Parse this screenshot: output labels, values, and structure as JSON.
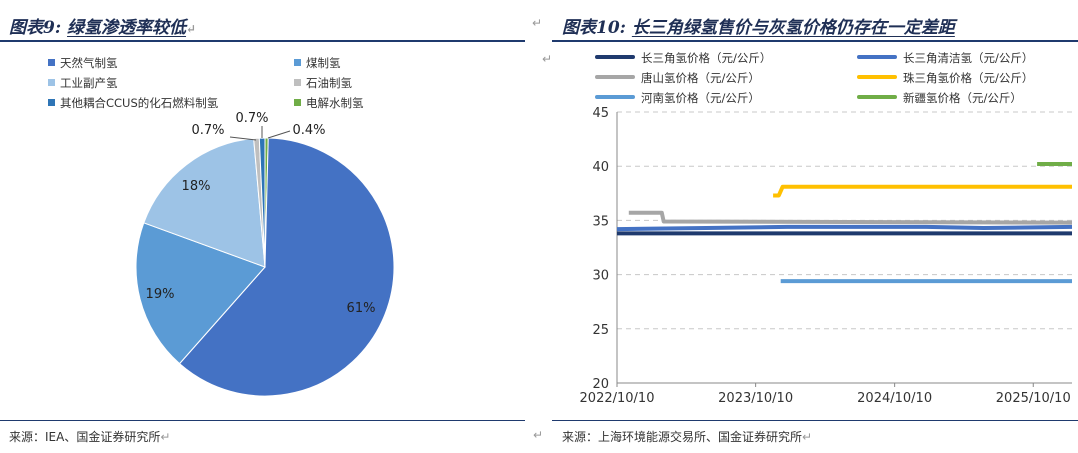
{
  "left": {
    "title_prefix": "图表9:",
    "title_main": "绿氢渗透率较低",
    "source": "来源：IEA、国金证券研究所",
    "chart_data": {
      "type": "pie",
      "title": "绿氢渗透率较低",
      "slices": [
        {
          "name": "天然气制氢",
          "value": 61,
          "label": "61%",
          "color": "#4472c4"
        },
        {
          "name": "煤制氢",
          "value": 19,
          "label": "19%",
          "color": "#5b9bd5"
        },
        {
          "name": "工业副产氢",
          "value": 18,
          "label": "18%",
          "color": "#9dc3e6"
        },
        {
          "name": "石油制氢",
          "value": 0.7,
          "label": "0.7%",
          "color": "#bfbfbf"
        },
        {
          "name": "其他耦合CCUS的化石燃料制氢",
          "value": 0.7,
          "label": "0.7%",
          "color": "#2e75b6"
        },
        {
          "name": "电解水制氢",
          "value": 0.4,
          "label": "0.4%",
          "color": "#70ad47"
        }
      ]
    }
  },
  "right": {
    "title_prefix": "图表10:",
    "title_main": "长三角绿氢售价与灰氢价格仍存在一定差距",
    "source": "来源：上海环境能源交易所、国金证券研究所",
    "chart_data": {
      "type": "line",
      "title": "长三角绿氢售价与灰氢价格仍存在一定差距",
      "ylim": [
        20,
        45
      ],
      "yticks": [
        20,
        25,
        30,
        35,
        40,
        45
      ],
      "xticks": [
        "2022/10/10",
        "2023/10/10",
        "2024/10/10",
        "2025/10/10"
      ],
      "xlim": [
        "2022/10/10",
        "2026/01/20"
      ],
      "grid": true,
      "legend": "top",
      "series": [
        {
          "name": "长三角氢价格（元/公斤）",
          "color": "#1f3a6e",
          "width": 4,
          "points": [
            [
              "2022/10/10",
              33.8
            ],
            [
              "2026/01/20",
              33.8
            ]
          ]
        },
        {
          "name": "长三角清洁氢（元/公斤）",
          "color": "#4472c4",
          "width": 4,
          "points": [
            [
              "2022/10/10",
              34.2
            ],
            [
              "2023/06/01",
              34.3
            ],
            [
              "2024/01/01",
              34.4
            ],
            [
              "2025/01/01",
              34.4
            ],
            [
              "2025/06/01",
              34.3
            ],
            [
              "2026/01/20",
              34.4
            ]
          ]
        },
        {
          "name": "唐山氢价格（元/公斤）",
          "color": "#a6a6a6",
          "width": 4,
          "points": [
            [
              "2022/11/10",
              35.7
            ],
            [
              "2023/02/05",
              35.7
            ],
            [
              "2023/02/10",
              34.9
            ],
            [
              "2026/01/20",
              34.8
            ]
          ]
        },
        {
          "name": "珠三角氢价格（元/公斤）",
          "color": "#ffc000",
          "width": 4,
          "points": [
            [
              "2023/11/25",
              37.3
            ],
            [
              "2023/12/10",
              37.3
            ],
            [
              "2023/12/20",
              38.1
            ],
            [
              "2026/01/20",
              38.1
            ]
          ]
        },
        {
          "name": "河南氢价格（元/公斤）",
          "color": "#5b9bd5",
          "width": 4,
          "points": [
            [
              "2023/12/15",
              29.4
            ],
            [
              "2026/01/20",
              29.4
            ]
          ]
        },
        {
          "name": "新疆氢价格（元/公斤）",
          "color": "#70ad47",
          "width": 4,
          "points": [
            [
              "2025/10/20",
              40.2
            ],
            [
              "2026/01/20",
              40.2
            ]
          ]
        }
      ]
    }
  }
}
